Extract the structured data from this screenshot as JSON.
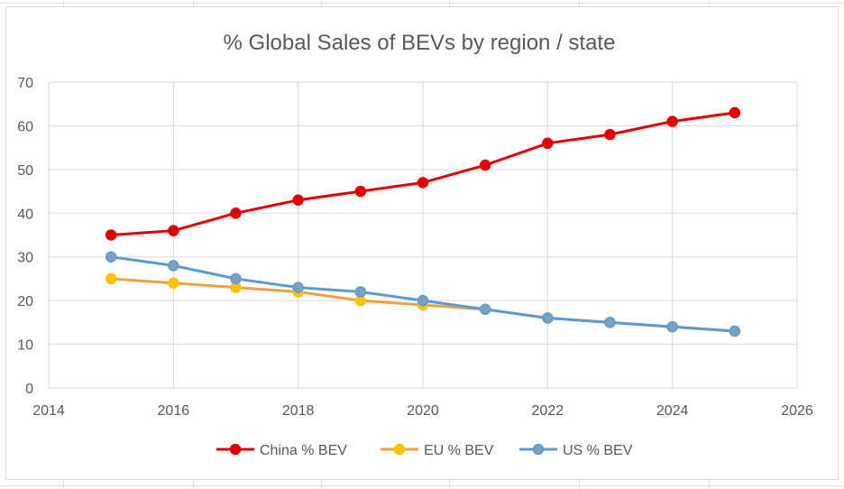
{
  "colors": {
    "china": "#e41a1c",
    "china_stroke": "#e00000",
    "eu": "#f2a03d",
    "eu_marker": "#ffc000",
    "us": "#5b9bd5",
    "us_marker": "#7f9fbf",
    "grid": "#d9d9d9",
    "text": "#595959"
  },
  "chart_data": {
    "type": "line",
    "title": "% Global Sales of BEVs  by region / state",
    "xlabel": "",
    "ylabel": "",
    "xlim": [
      2014,
      2026
    ],
    "ylim": [
      0,
      70
    ],
    "x_ticks": [
      "2014",
      "2016",
      "2018",
      "2020",
      "2022",
      "2024",
      "2026"
    ],
    "y_ticks": [
      "0",
      "10",
      "20",
      "30",
      "40",
      "50",
      "60",
      "70"
    ],
    "grid": true,
    "legend_position": "bottom",
    "x": [
      2015,
      2016,
      2017,
      2018,
      2019,
      2020,
      2021,
      2022,
      2023,
      2024,
      2025
    ],
    "series": [
      {
        "name": "China % BEV",
        "key": "china",
        "values": [
          35,
          36,
          40,
          43,
          45,
          47,
          51,
          56,
          58,
          61,
          63
        ]
      },
      {
        "name": "EU % BEV",
        "key": "eu",
        "values": [
          25,
          24,
          23,
          22,
          20,
          19,
          18,
          16,
          15,
          14,
          13
        ]
      },
      {
        "name": "US % BEV",
        "key": "us",
        "values": [
          30,
          28,
          25,
          23,
          22,
          20,
          18,
          16,
          15,
          14,
          13
        ]
      }
    ]
  }
}
